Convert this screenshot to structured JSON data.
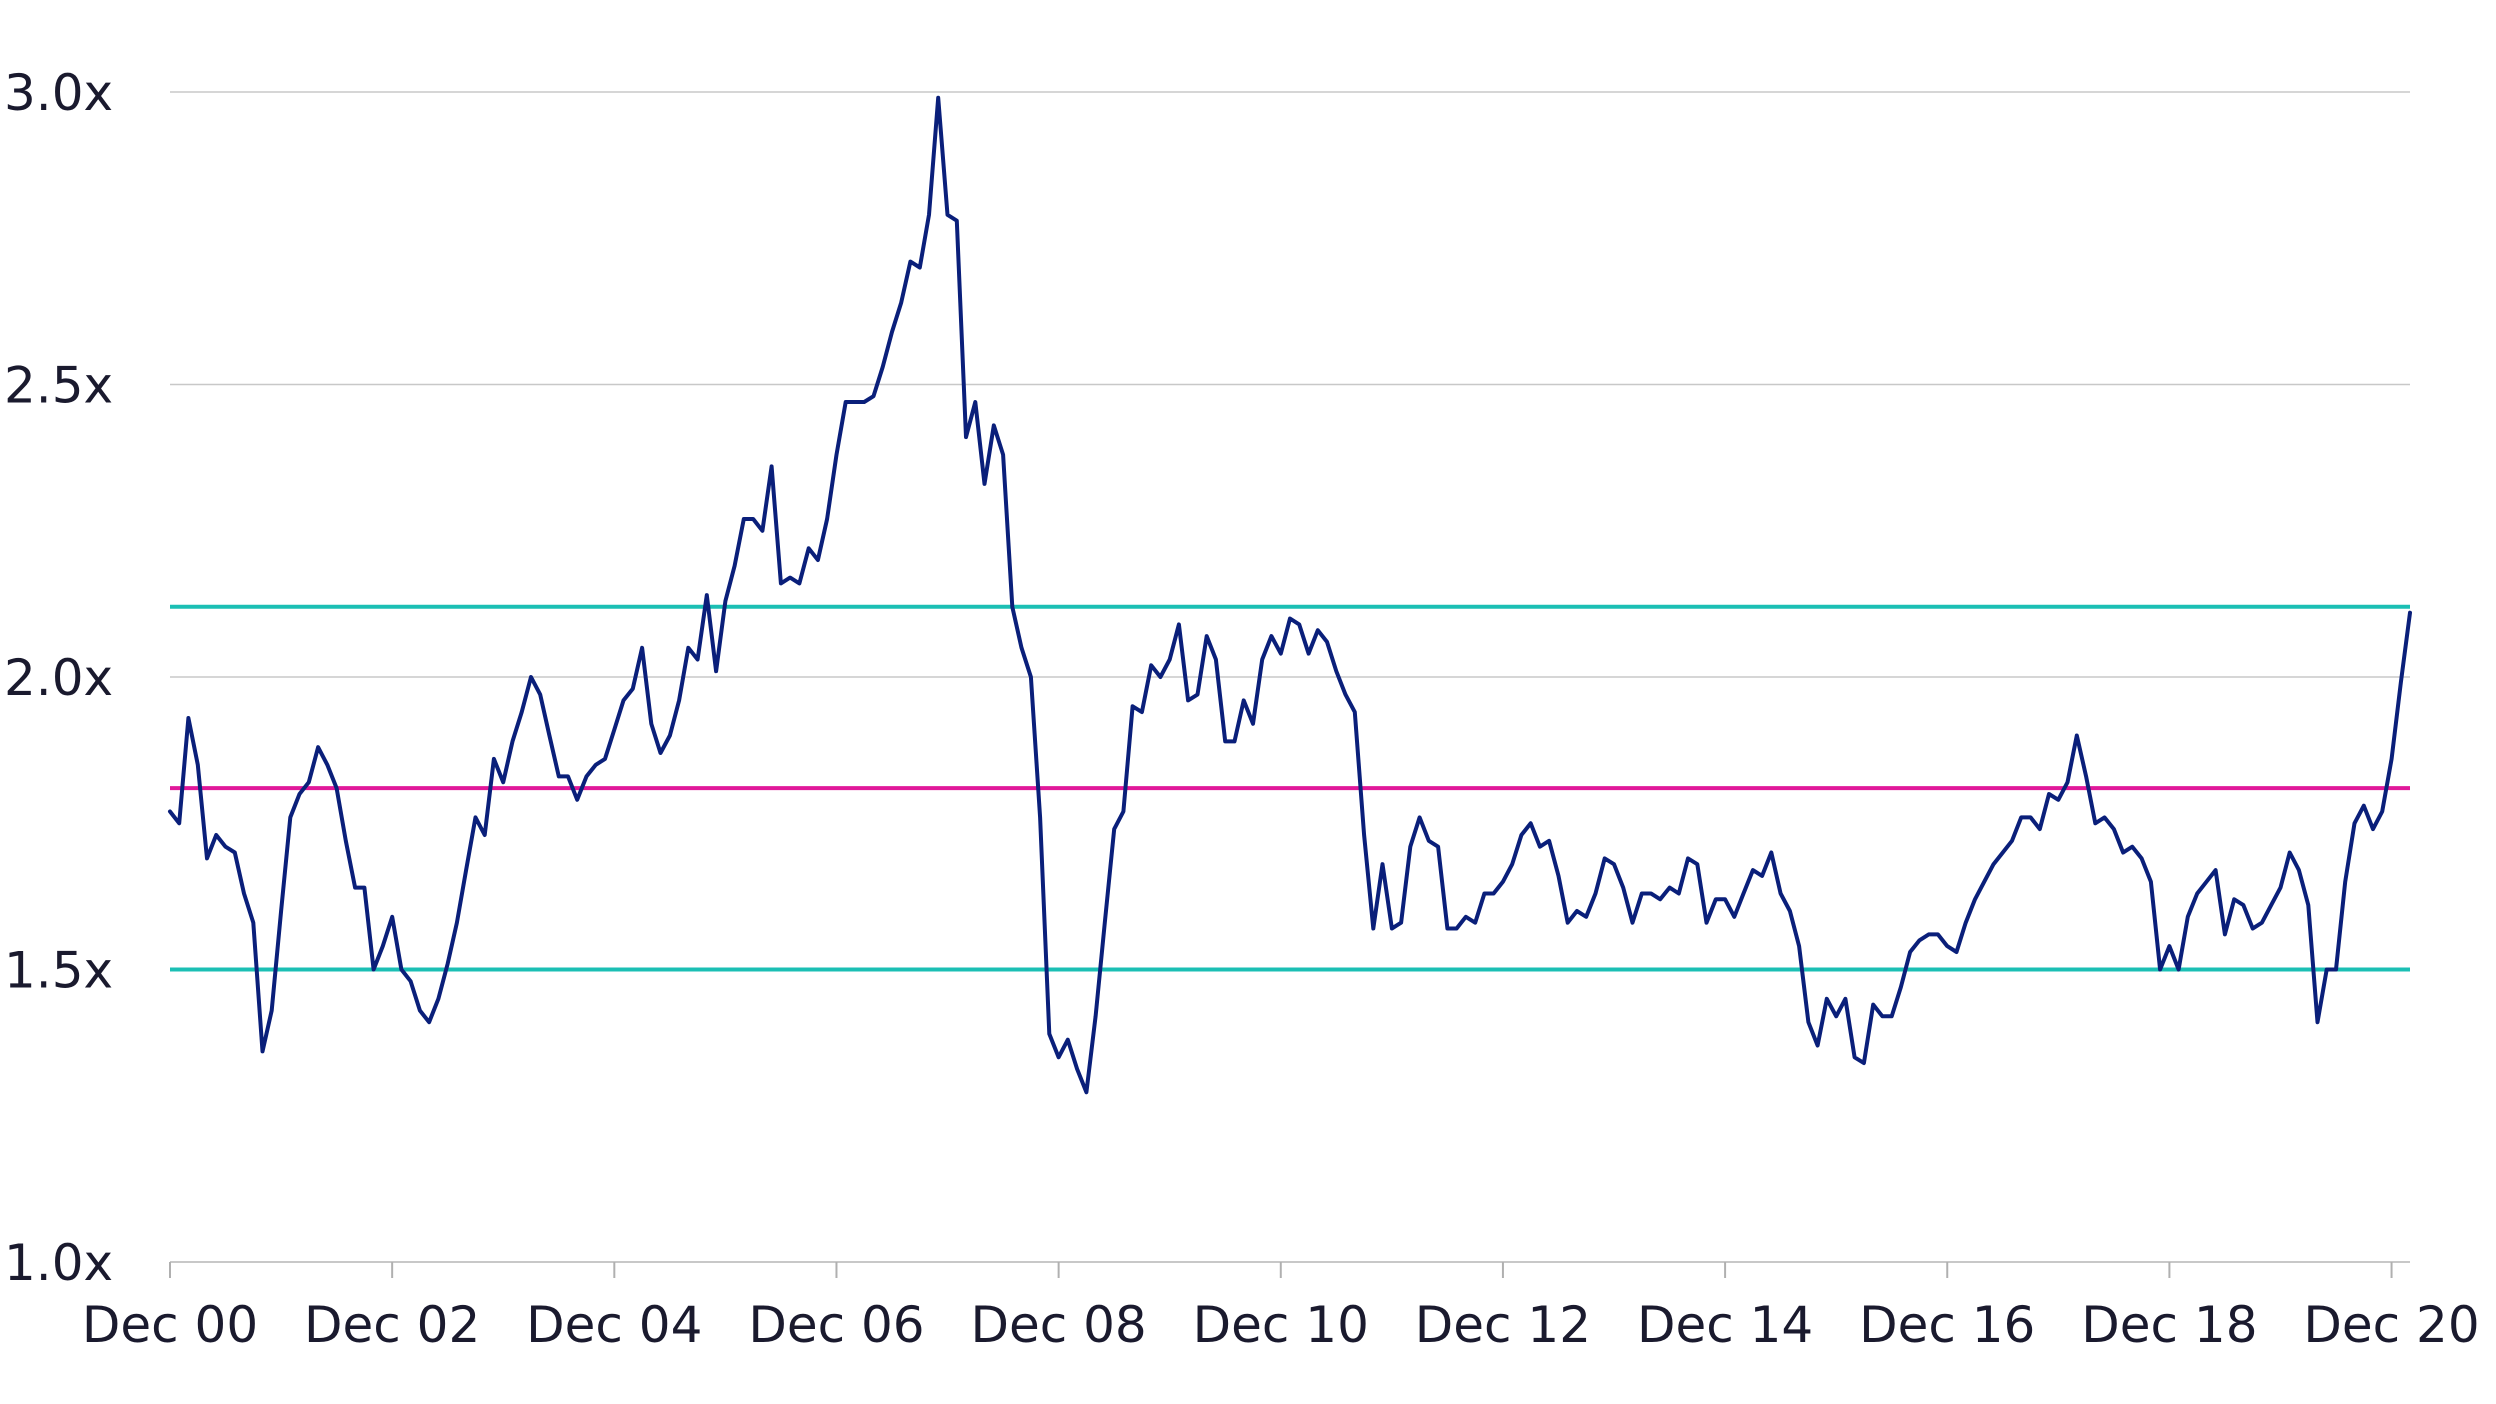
{
  "chart_data": {
    "type": "line",
    "title": "",
    "xlabel": "",
    "ylabel": "",
    "ylim": [
      1.0,
      3.0
    ],
    "yticks": [
      "1.0x",
      "1.5x",
      "2.0x",
      "2.5x",
      "3.0x"
    ],
    "ytick_values": [
      1.0,
      1.5,
      2.0,
      2.5,
      3.0
    ],
    "xticks": [
      "Dec 00",
      "Dec 02",
      "Dec 04",
      "Dec 06",
      "Dec 08",
      "Dec 10",
      "Dec 12",
      "Dec 14",
      "Dec 16",
      "Dec 18",
      "Dec 20"
    ],
    "xtick_values": [
      2000.917,
      2002.917,
      2004.917,
      2006.917,
      2008.917,
      2010.917,
      2012.917,
      2014.917,
      2016.917,
      2018.917,
      2020.917
    ],
    "xlim": [
      2000.917,
      2021.083
    ],
    "grid": true,
    "legend": "none",
    "series": [
      {
        "color": "#0a1f7a",
        "points": [
          [
            2000.917,
            1.77
          ],
          [
            2001.0,
            1.75
          ],
          [
            2001.083,
            1.93
          ],
          [
            2001.167,
            1.85
          ],
          [
            2001.25,
            1.69
          ],
          [
            2001.333,
            1.73
          ],
          [
            2001.417,
            1.71
          ],
          [
            2001.5,
            1.7
          ],
          [
            2001.583,
            1.63
          ],
          [
            2001.667,
            1.58
          ],
          [
            2001.75,
            1.36
          ],
          [
            2001.833,
            1.43
          ],
          [
            2001.917,
            1.6
          ],
          [
            2002.0,
            1.76
          ],
          [
            2002.083,
            1.8
          ],
          [
            2002.167,
            1.82
          ],
          [
            2002.25,
            1.88
          ],
          [
            2002.333,
            1.85
          ],
          [
            2002.417,
            1.81
          ],
          [
            2002.5,
            1.72
          ],
          [
            2002.583,
            1.64
          ],
          [
            2002.667,
            1.64
          ],
          [
            2002.75,
            1.5
          ],
          [
            2002.833,
            1.54
          ],
          [
            2002.917,
            1.59
          ],
          [
            2003.0,
            1.5
          ],
          [
            2003.083,
            1.48
          ],
          [
            2003.167,
            1.43
          ],
          [
            2003.25,
            1.41
          ],
          [
            2003.333,
            1.45
          ],
          [
            2003.417,
            1.51
          ],
          [
            2003.5,
            1.58
          ],
          [
            2003.583,
            1.67
          ],
          [
            2003.667,
            1.76
          ],
          [
            2003.75,
            1.73
          ],
          [
            2003.833,
            1.86
          ],
          [
            2003.917,
            1.82
          ],
          [
            2004.0,
            1.89
          ],
          [
            2004.083,
            1.94
          ],
          [
            2004.167,
            2.0
          ],
          [
            2004.25,
            1.97
          ],
          [
            2004.333,
            1.9
          ],
          [
            2004.417,
            1.83
          ],
          [
            2004.5,
            1.83
          ],
          [
            2004.583,
            1.79
          ],
          [
            2004.667,
            1.83
          ],
          [
            2004.75,
            1.85
          ],
          [
            2004.833,
            1.86
          ],
          [
            2004.917,
            1.91
          ],
          [
            2005.0,
            1.96
          ],
          [
            2005.083,
            1.98
          ],
          [
            2005.167,
            2.05
          ],
          [
            2005.25,
            1.92
          ],
          [
            2005.333,
            1.87
          ],
          [
            2005.417,
            1.9
          ],
          [
            2005.5,
            1.96
          ],
          [
            2005.583,
            2.05
          ],
          [
            2005.667,
            2.03
          ],
          [
            2005.75,
            2.14
          ],
          [
            2005.833,
            2.01
          ],
          [
            2005.917,
            2.13
          ],
          [
            2006.0,
            2.19
          ],
          [
            2006.083,
            2.27
          ],
          [
            2006.167,
            2.27
          ],
          [
            2006.25,
            2.25
          ],
          [
            2006.333,
            2.36
          ],
          [
            2006.417,
            2.16
          ],
          [
            2006.5,
            2.17
          ],
          [
            2006.583,
            2.16
          ],
          [
            2006.667,
            2.22
          ],
          [
            2006.75,
            2.2
          ],
          [
            2006.833,
            2.27
          ],
          [
            2006.917,
            2.38
          ],
          [
            2007.0,
            2.47
          ],
          [
            2007.083,
            2.47
          ],
          [
            2007.167,
            2.47
          ],
          [
            2007.25,
            2.48
          ],
          [
            2007.333,
            2.53
          ],
          [
            2007.417,
            2.59
          ],
          [
            2007.5,
            2.64
          ],
          [
            2007.583,
            2.71
          ],
          [
            2007.667,
            2.7
          ],
          [
            2007.75,
            2.79
          ],
          [
            2007.833,
            2.99
          ],
          [
            2007.917,
            2.79
          ],
          [
            2008.0,
            2.78
          ],
          [
            2008.083,
            2.41
          ],
          [
            2008.167,
            2.47
          ],
          [
            2008.25,
            2.33
          ],
          [
            2008.333,
            2.43
          ],
          [
            2008.417,
            2.38
          ],
          [
            2008.5,
            2.12
          ],
          [
            2008.583,
            2.05
          ],
          [
            2008.667,
            2.0
          ],
          [
            2008.75,
            1.76
          ],
          [
            2008.833,
            1.39
          ],
          [
            2008.917,
            1.35
          ],
          [
            2009.0,
            1.38
          ],
          [
            2009.083,
            1.33
          ],
          [
            2009.167,
            1.29
          ],
          [
            2009.25,
            1.42
          ],
          [
            2009.333,
            1.58
          ],
          [
            2009.417,
            1.74
          ],
          [
            2009.5,
            1.77
          ],
          [
            2009.583,
            1.95
          ],
          [
            2009.667,
            1.94
          ],
          [
            2009.75,
            2.02
          ],
          [
            2009.833,
            2.0
          ],
          [
            2009.917,
            2.03
          ],
          [
            2010.0,
            2.09
          ],
          [
            2010.083,
            1.96
          ],
          [
            2010.167,
            1.97
          ],
          [
            2010.25,
            2.07
          ],
          [
            2010.333,
            2.03
          ],
          [
            2010.417,
            1.89
          ],
          [
            2010.5,
            1.89
          ],
          [
            2010.583,
            1.96
          ],
          [
            2010.667,
            1.92
          ],
          [
            2010.75,
            2.03
          ],
          [
            2010.833,
            2.07
          ],
          [
            2010.917,
            2.04
          ],
          [
            2011.0,
            2.1
          ],
          [
            2011.083,
            2.09
          ],
          [
            2011.167,
            2.04
          ],
          [
            2011.25,
            2.08
          ],
          [
            2011.333,
            2.06
          ],
          [
            2011.417,
            2.01
          ],
          [
            2011.5,
            1.97
          ],
          [
            2011.583,
            1.94
          ],
          [
            2011.667,
            1.73
          ],
          [
            2011.75,
            1.57
          ],
          [
            2011.833,
            1.68
          ],
          [
            2011.917,
            1.57
          ],
          [
            2012.0,
            1.58
          ],
          [
            2012.083,
            1.71
          ],
          [
            2012.167,
            1.76
          ],
          [
            2012.25,
            1.72
          ],
          [
            2012.333,
            1.71
          ],
          [
            2012.417,
            1.57
          ],
          [
            2012.5,
            1.57
          ],
          [
            2012.583,
            1.59
          ],
          [
            2012.667,
            1.58
          ],
          [
            2012.75,
            1.63
          ],
          [
            2012.833,
            1.63
          ],
          [
            2012.917,
            1.65
          ],
          [
            2013.0,
            1.68
          ],
          [
            2013.083,
            1.73
          ],
          [
            2013.167,
            1.75
          ],
          [
            2013.25,
            1.71
          ],
          [
            2013.333,
            1.72
          ],
          [
            2013.417,
            1.66
          ],
          [
            2013.5,
            1.58
          ],
          [
            2013.583,
            1.6
          ],
          [
            2013.667,
            1.59
          ],
          [
            2013.75,
            1.63
          ],
          [
            2013.833,
            1.69
          ],
          [
            2013.917,
            1.68
          ],
          [
            2014.0,
            1.64
          ],
          [
            2014.083,
            1.58
          ],
          [
            2014.167,
            1.63
          ],
          [
            2014.25,
            1.63
          ],
          [
            2014.333,
            1.62
          ],
          [
            2014.417,
            1.64
          ],
          [
            2014.5,
            1.63
          ],
          [
            2014.583,
            1.69
          ],
          [
            2014.667,
            1.68
          ],
          [
            2014.75,
            1.58
          ],
          [
            2014.833,
            1.62
          ],
          [
            2014.917,
            1.62
          ],
          [
            2015.0,
            1.59
          ],
          [
            2015.083,
            1.63
          ],
          [
            2015.167,
            1.67
          ],
          [
            2015.25,
            1.66
          ],
          [
            2015.333,
            1.7
          ],
          [
            2015.417,
            1.63
          ],
          [
            2015.5,
            1.6
          ],
          [
            2015.583,
            1.54
          ],
          [
            2015.667,
            1.41
          ],
          [
            2015.75,
            1.37
          ],
          [
            2015.833,
            1.45
          ],
          [
            2015.917,
            1.42
          ],
          [
            2016.0,
            1.45
          ],
          [
            2016.083,
            1.35
          ],
          [
            2016.167,
            1.34
          ],
          [
            2016.25,
            1.44
          ],
          [
            2016.333,
            1.42
          ],
          [
            2016.417,
            1.42
          ],
          [
            2016.5,
            1.47
          ],
          [
            2016.583,
            1.53
          ],
          [
            2016.667,
            1.55
          ],
          [
            2016.75,
            1.56
          ],
          [
            2016.833,
            1.56
          ],
          [
            2016.917,
            1.54
          ],
          [
            2017.0,
            1.53
          ],
          [
            2017.083,
            1.58
          ],
          [
            2017.167,
            1.62
          ],
          [
            2017.25,
            1.65
          ],
          [
            2017.333,
            1.68
          ],
          [
            2017.417,
            1.7
          ],
          [
            2017.5,
            1.72
          ],
          [
            2017.583,
            1.76
          ],
          [
            2017.667,
            1.76
          ],
          [
            2017.75,
            1.74
          ],
          [
            2017.833,
            1.8
          ],
          [
            2017.917,
            1.79
          ],
          [
            2018.0,
            1.82
          ],
          [
            2018.083,
            1.9
          ],
          [
            2018.167,
            1.83
          ],
          [
            2018.25,
            1.75
          ],
          [
            2018.333,
            1.76
          ],
          [
            2018.417,
            1.74
          ],
          [
            2018.5,
            1.7
          ],
          [
            2018.583,
            1.71
          ],
          [
            2018.667,
            1.69
          ],
          [
            2018.75,
            1.65
          ],
          [
            2018.833,
            1.5
          ],
          [
            2018.917,
            1.54
          ],
          [
            2019.0,
            1.5
          ],
          [
            2019.083,
            1.59
          ],
          [
            2019.167,
            1.63
          ],
          [
            2019.25,
            1.65
          ],
          [
            2019.333,
            1.67
          ],
          [
            2019.417,
            1.56
          ],
          [
            2019.5,
            1.62
          ],
          [
            2019.583,
            1.61
          ],
          [
            2019.667,
            1.57
          ],
          [
            2019.75,
            1.58
          ],
          [
            2019.833,
            1.61
          ],
          [
            2019.917,
            1.64
          ],
          [
            2020.0,
            1.7
          ],
          [
            2020.083,
            1.67
          ],
          [
            2020.167,
            1.61
          ],
          [
            2020.25,
            1.41
          ],
          [
            2020.333,
            1.5
          ],
          [
            2020.417,
            1.5
          ],
          [
            2020.5,
            1.65
          ],
          [
            2020.583,
            1.75
          ],
          [
            2020.667,
            1.78
          ],
          [
            2020.75,
            1.74
          ],
          [
            2020.833,
            1.77
          ],
          [
            2020.917,
            1.86
          ],
          [
            2021.0,
            1.99
          ],
          [
            2021.083,
            2.11
          ]
        ]
      }
    ],
    "reference_lines": [
      {
        "value": 2.12,
        "color": "#1bbfb4"
      },
      {
        "value": 1.81,
        "color": "#e0189a"
      },
      {
        "value": 1.5,
        "color": "#1bbfb4"
      }
    ]
  }
}
